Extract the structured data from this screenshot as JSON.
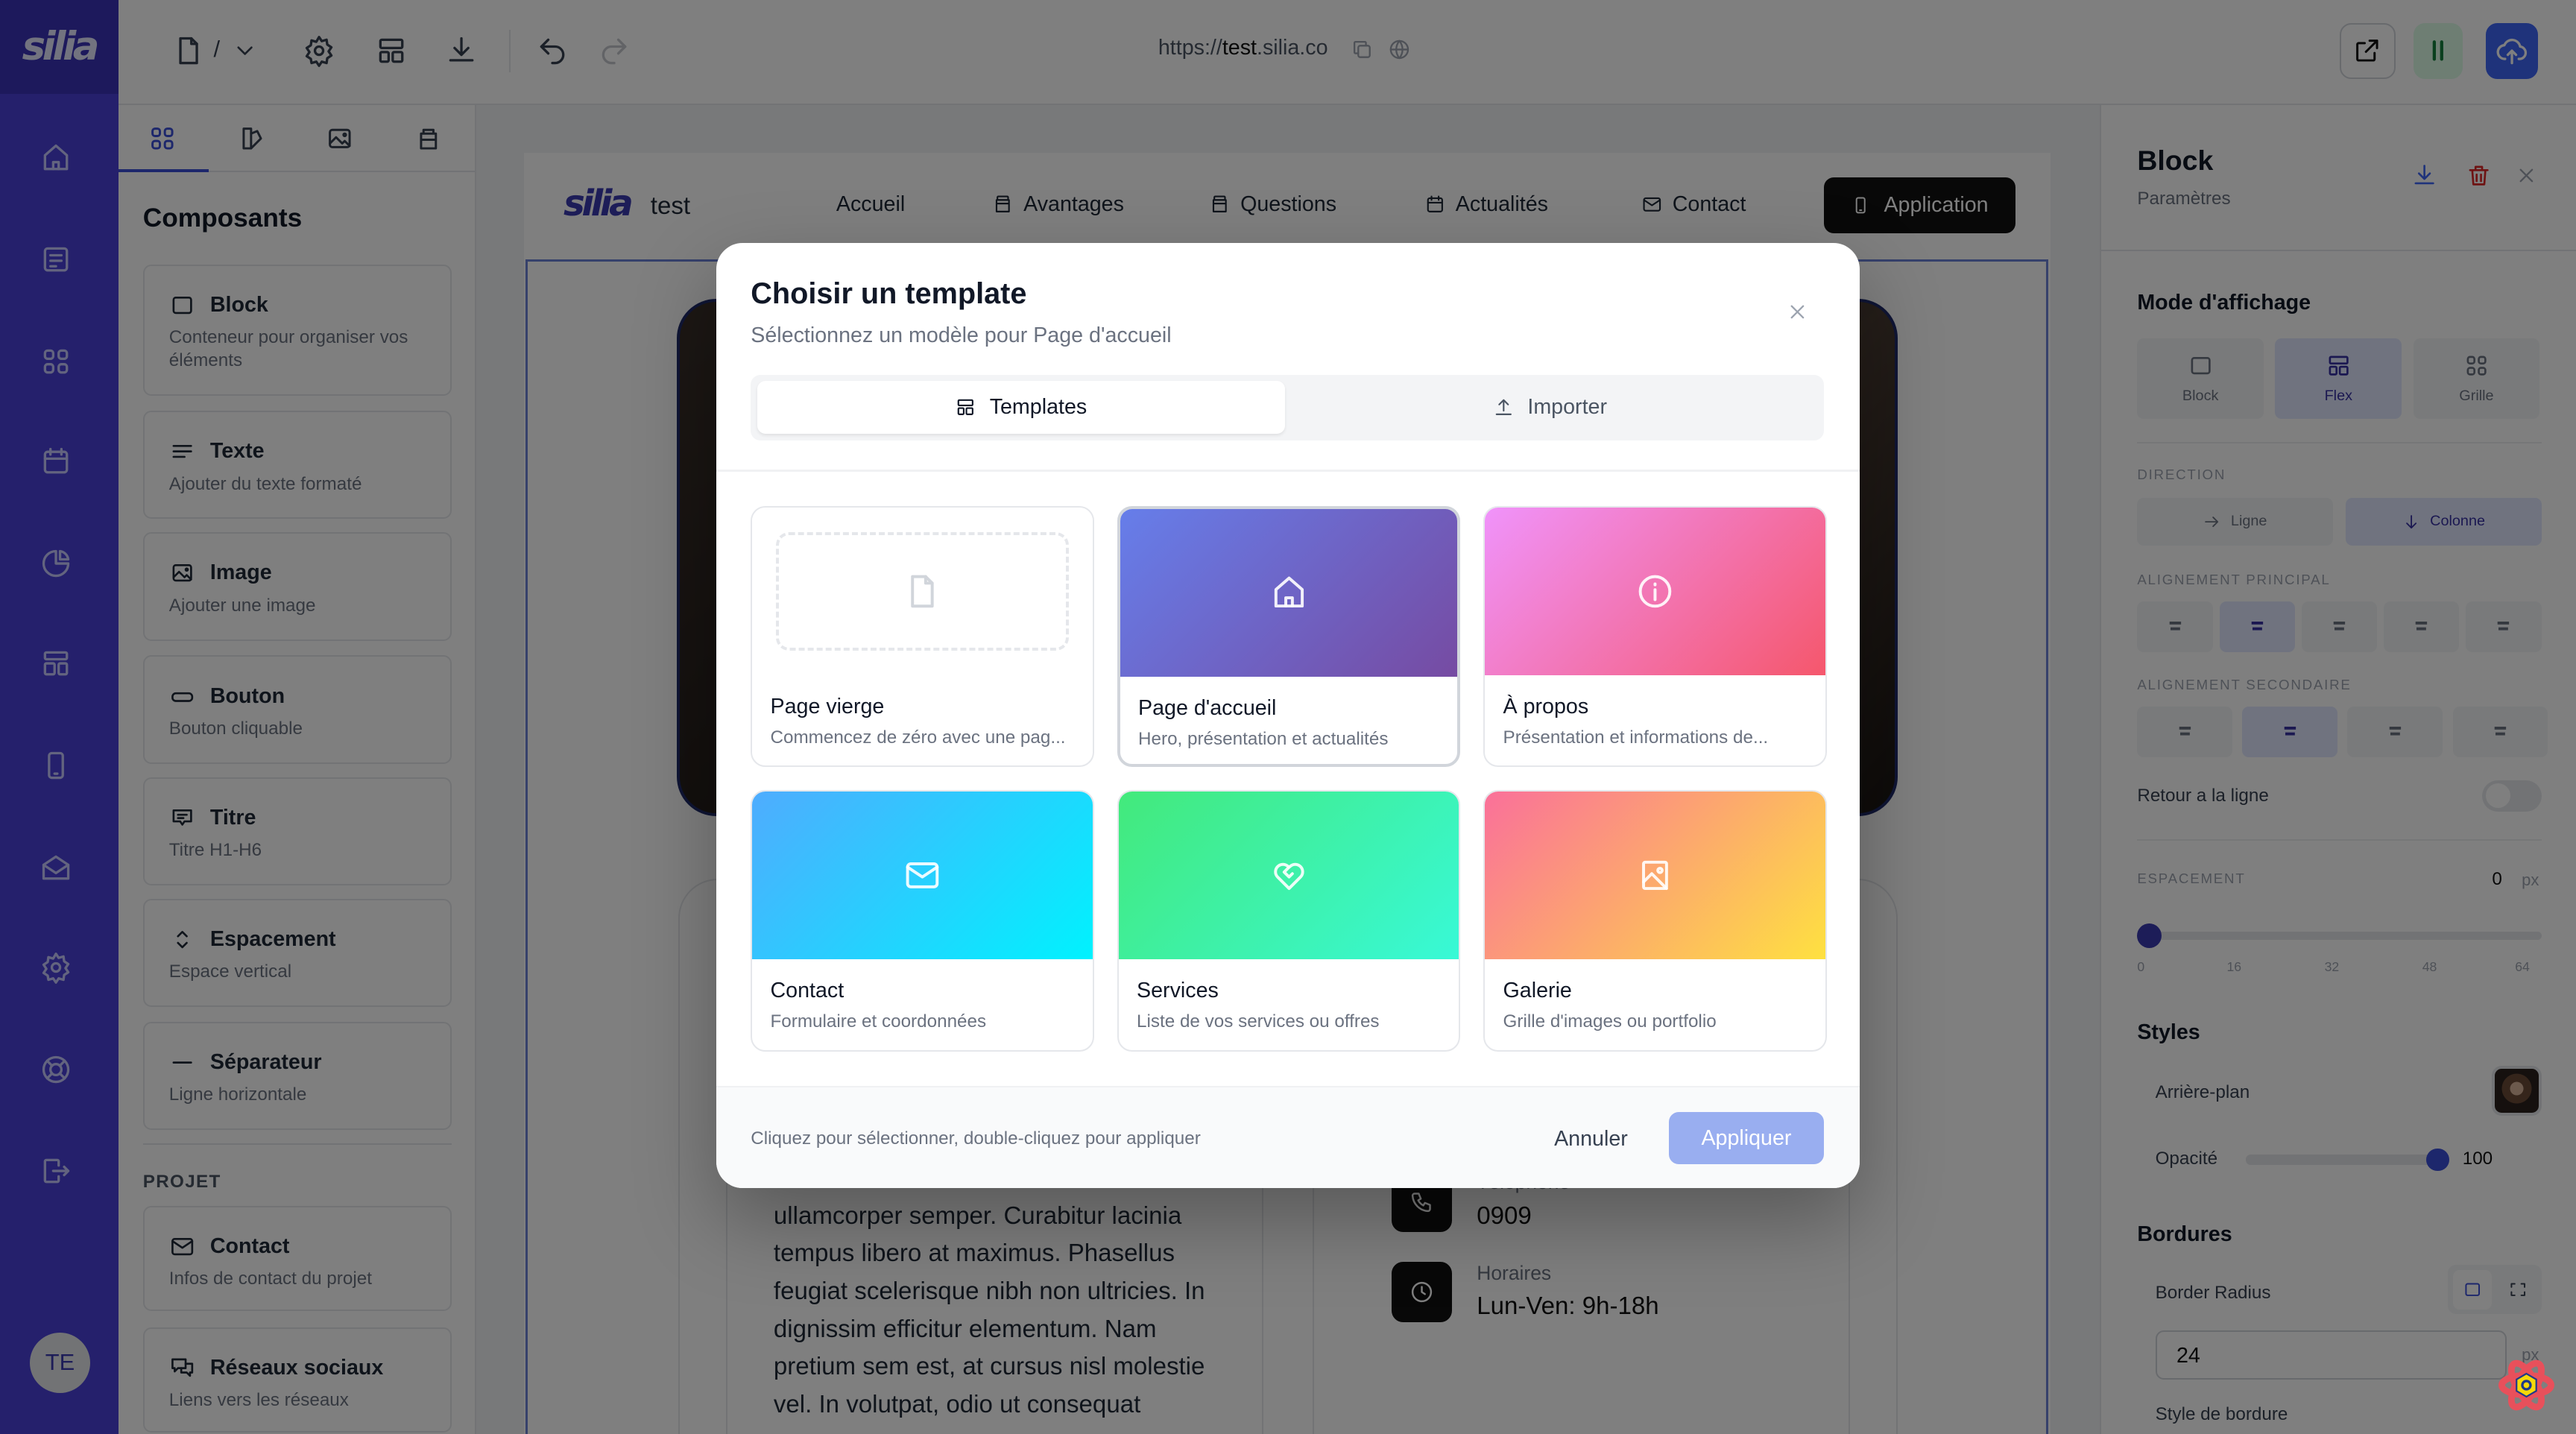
{
  "nav": {
    "logo": "silia",
    "items": [
      {
        "icon": "home-icon"
      },
      {
        "icon": "pages-icon"
      },
      {
        "icon": "grid-icon"
      },
      {
        "icon": "calendar-icon"
      },
      {
        "icon": "chart-pie-icon"
      },
      {
        "icon": "apps-icon"
      },
      {
        "icon": "mobile-icon"
      },
      {
        "icon": "mail-open-icon"
      },
      {
        "icon": "settings-icon"
      },
      {
        "icon": "help-icon"
      },
      {
        "icon": "logout-icon"
      }
    ],
    "avatar": "TE",
    "color": "#4a40d8"
  },
  "toolbar": {
    "page_path": "/",
    "url_prefix": "https://",
    "url_host": "test",
    "url_suffix": ".silia.co",
    "icons": [
      "file-icon",
      "chevron-down-icon",
      "settings-icon",
      "layout-icon",
      "download-icon",
      "undo-icon",
      "redo-icon",
      "copy-icon",
      "globe-icon",
      "external-link-icon",
      "pause-icon",
      "cloud-upload-icon"
    ]
  },
  "components": {
    "tabs": [
      "grid-icon",
      "palette-icon",
      "image-icon",
      "database-icon"
    ],
    "title": "Composants",
    "items": [
      {
        "label": "Block",
        "desc": "Conteneur pour organiser vos éléments",
        "icon": "square-icon"
      },
      {
        "label": "Texte",
        "desc": "Ajouter du texte formaté",
        "icon": "text-icon"
      },
      {
        "label": "Image",
        "desc": "Ajouter une image",
        "icon": "image-icon"
      },
      {
        "label": "Bouton",
        "desc": "Bouton cliquable",
        "icon": "button-icon"
      },
      {
        "label": "Titre",
        "desc": "Titre H1-H6",
        "icon": "heading-icon"
      },
      {
        "label": "Espacement",
        "desc": "Espace vertical",
        "icon": "spacing-icon"
      },
      {
        "label": "Séparateur",
        "desc": "Ligne horizontale",
        "icon": "minus-icon"
      }
    ],
    "project_label": "PROJET",
    "project_items": [
      {
        "label": "Contact",
        "desc": "Infos de contact du projet",
        "icon": "mail-icon"
      },
      {
        "label": "Réseaux sociaux",
        "desc": "Liens vers les réseaux",
        "icon": "chat-icon"
      }
    ]
  },
  "preview": {
    "logo": "silia",
    "site_name": "test",
    "nav": [
      {
        "label": "Accueil",
        "icon": ""
      },
      {
        "label": "Avantages",
        "icon": "store-icon"
      },
      {
        "label": "Questions",
        "icon": "store-icon"
      },
      {
        "label": "Actualités",
        "icon": "calendar-icon"
      },
      {
        "label": "Contact",
        "icon": "mail-icon"
      }
    ],
    "cta": "Application",
    "paragraph_lines": [
      "ullamcorper semper. Curabitur lacinia",
      "tempus libero at maximus. Phasellus",
      "feugiat scelerisque nibh non ultricies. In",
      "dignissim efficitur elementum. Nam",
      "pretium sem est, at cursus nisl molestie",
      "vel. In volutpat, odio ut consequat"
    ],
    "contact": [
      {
        "label": "Téléphone",
        "value": "0909",
        "icon": "phone-icon"
      },
      {
        "label": "Horaires",
        "value": "Lun-Ven: 9h-18h",
        "icon": "clock-icon"
      }
    ]
  },
  "props": {
    "title": "Block",
    "subtitle": "Paramètres",
    "display_title": "Mode d'affichage",
    "display_modes": [
      {
        "label": "Block",
        "active": false
      },
      {
        "label": "Flex",
        "active": true
      },
      {
        "label": "Grille",
        "active": false
      }
    ],
    "direction_label": "DIRECTION",
    "directions": [
      {
        "label": "Ligne",
        "active": false
      },
      {
        "label": "Colonne",
        "active": true
      }
    ],
    "main_align_label": "ALIGNEMENT PRINCIPAL",
    "main_align_active": 1,
    "cross_align_label": "ALIGNEMENT SECONDAIRE",
    "cross_align_active": 1,
    "wrap_label": "Retour a la ligne",
    "wrap_on": false,
    "spacing_label": "ESPACEMENT",
    "spacing_value": "0",
    "spacing_unit": "px",
    "spacing_ticks": [
      "0",
      "16",
      "32",
      "48",
      "64"
    ],
    "styles_title": "Styles",
    "background_label": "Arrière-plan",
    "opacity_label": "Opacité",
    "opacity_value": "100",
    "borders_title": "Bordures",
    "radius_label": "Border Radius",
    "radius_value": "24",
    "radius_unit": "px",
    "border_style_label": "Style de bordure",
    "accent": "#3730a3"
  },
  "modal": {
    "title": "Choisir un template",
    "subtitle": "Sélectionnez un modèle pour Page d'accueil",
    "tabs": [
      {
        "label": "Templates",
        "icon": "layout-icon",
        "active": true
      },
      {
        "label": "Importer",
        "icon": "upload-icon",
        "active": false
      }
    ],
    "templates": [
      {
        "name": "Page vierge",
        "desc": "Commencez de zéro avec une pag...",
        "icon": "file-icon",
        "gradient": [
          "#ffffff",
          "#ffffff"
        ],
        "selected": false
      },
      {
        "name": "Page d'accueil",
        "desc": "Hero, présentation et actualités",
        "icon": "home-icon",
        "gradient": [
          "#667eea",
          "#764ba2"
        ],
        "selected": true
      },
      {
        "name": "À propos",
        "desc": "Présentation et informations de...",
        "icon": "info-icon",
        "gradient": [
          "#f093fb",
          "#f5576c"
        ],
        "selected": false
      },
      {
        "name": "Contact",
        "desc": "Formulaire et coordonnées",
        "icon": "mail-icon",
        "gradient": [
          "#4facfe",
          "#00f2fe"
        ],
        "selected": false
      },
      {
        "name": "Services",
        "desc": "Liste de vos services ou offres",
        "icon": "heart-handshake-icon",
        "gradient": [
          "#43e97b",
          "#38f9d7"
        ],
        "selected": false
      },
      {
        "name": "Galerie",
        "desc": "Grille d'images ou portfolio",
        "icon": "gallery-icon",
        "gradient": [
          "#fa709a",
          "#fee140"
        ],
        "selected": false
      }
    ],
    "hint": "Cliquez pour sélectionner, double-cliquez pour appliquer",
    "cancel": "Annuler",
    "apply": "Appliquer",
    "apply_color": "#99aef0"
  }
}
